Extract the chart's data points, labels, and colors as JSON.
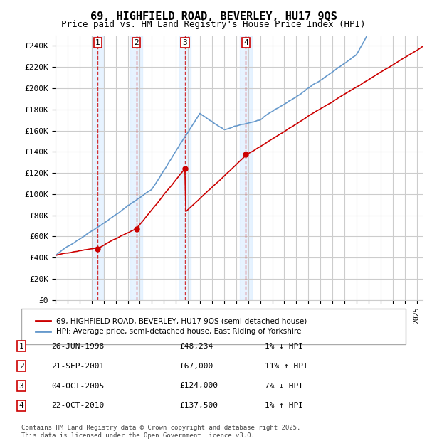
{
  "title": "69, HIGHFIELD ROAD, BEVERLEY, HU17 9QS",
  "subtitle": "Price paid vs. HM Land Registry's House Price Index (HPI)",
  "legend_label_red": "69, HIGHFIELD ROAD, BEVERLEY, HU17 9QS (semi-detached house)",
  "legend_label_blue": "HPI: Average price, semi-detached house, East Riding of Yorkshire",
  "footer": "Contains HM Land Registry data © Crown copyright and database right 2025.\nThis data is licensed under the Open Government Licence v3.0.",
  "ylim": [
    0,
    250000
  ],
  "yticks": [
    0,
    20000,
    40000,
    60000,
    80000,
    100000,
    120000,
    140000,
    160000,
    180000,
    200000,
    220000,
    240000
  ],
  "ytick_labels": [
    "£0",
    "£20K",
    "£40K",
    "£60K",
    "£80K",
    "£100K",
    "£120K",
    "£140K",
    "£160K",
    "£180K",
    "£200K",
    "£220K",
    "£240K"
  ],
  "x_start_year": 1995,
  "x_end_year": 2025,
  "sale_points": [
    {
      "number": 1,
      "date": "26-JUN-1998",
      "year": 1998.5,
      "price": 48234,
      "hpi_diff": "1% ↓ HPI"
    },
    {
      "number": 2,
      "date": "21-SEP-2001",
      "year": 2001.72,
      "price": 67000,
      "hpi_diff": "11% ↑ HPI"
    },
    {
      "number": 3,
      "date": "04-OCT-2005",
      "year": 2005.76,
      "price": 124000,
      "hpi_diff": "7% ↓ HPI"
    },
    {
      "number": 4,
      "date": "22-OCT-2010",
      "year": 2010.81,
      "price": 137500,
      "hpi_diff": "1% ↑ HPI"
    }
  ],
  "background_color": "#ffffff",
  "grid_color": "#cccccc",
  "red_color": "#cc0000",
  "blue_color": "#6699cc",
  "sale_vline_color": "#cc0000",
  "sale_bg_color": "#ddeeff",
  "label_bg_color": "#ddeeff"
}
